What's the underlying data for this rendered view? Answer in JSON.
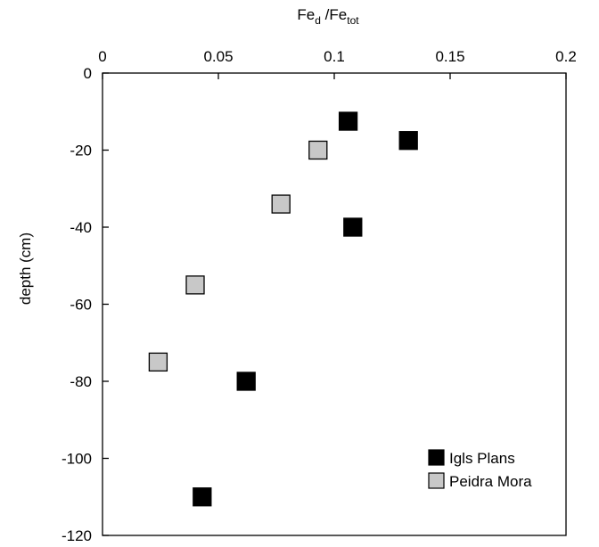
{
  "chart_data": {
    "type": "scatter",
    "title": "",
    "xlabel": {
      "base": "Fe",
      "sub1": "d",
      "sep": " /Fe",
      "sub2": "tot"
    },
    "ylabel": "depth (cm)",
    "xlim": [
      0,
      0.2
    ],
    "ylim": [
      -120,
      0
    ],
    "x_ticks": [
      {
        "value": 0,
        "label": "0"
      },
      {
        "value": 0.05,
        "label": "0.05"
      },
      {
        "value": 0.1,
        "label": "0.1"
      },
      {
        "value": 0.15,
        "label": "0.15"
      },
      {
        "value": 0.2,
        "label": "0.2"
      }
    ],
    "y_ticks": [
      {
        "value": 0,
        "label": "0"
      },
      {
        "value": -20,
        "label": "-20"
      },
      {
        "value": -40,
        "label": "-40"
      },
      {
        "value": -60,
        "label": "-60"
      },
      {
        "value": -80,
        "label": "-80"
      },
      {
        "value": -100,
        "label": "-100"
      },
      {
        "value": -120,
        "label": "-120"
      }
    ],
    "x_axis_position": "top",
    "grid": false,
    "legend_position": "bottom-right",
    "series": [
      {
        "name": "Igls Plans",
        "color": "#000000",
        "marker": "square",
        "points": [
          {
            "x": 0.106,
            "y": -12.5
          },
          {
            "x": 0.132,
            "y": -17.5
          },
          {
            "x": 0.108,
            "y": -40
          },
          {
            "x": 0.062,
            "y": -80
          },
          {
            "x": 0.043,
            "y": -110
          }
        ]
      },
      {
        "name": "Peidra Mora",
        "color": "#c8c8c8",
        "marker": "square",
        "points": [
          {
            "x": 0.093,
            "y": -20
          },
          {
            "x": 0.077,
            "y": -34
          },
          {
            "x": 0.04,
            "y": -55
          },
          {
            "x": 0.024,
            "y": -75
          }
        ]
      }
    ]
  }
}
